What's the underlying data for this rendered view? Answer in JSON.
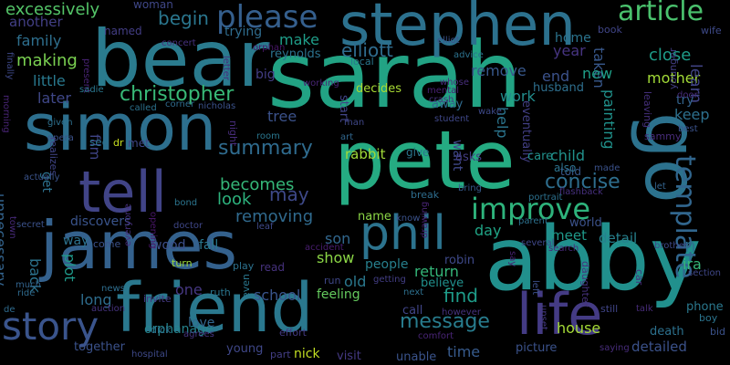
{
  "words": [
    {
      "t": "sarah",
      "c": "#22a384"
    },
    {
      "t": "bear",
      "c": "#2a7b8e"
    },
    {
      "t": "stephen",
      "c": "#2c718e"
    },
    {
      "t": "simon",
      "c": "#2d6f8e"
    },
    {
      "t": "tell",
      "c": "#414487"
    },
    {
      "t": "pete",
      "c": "#25ab82"
    },
    {
      "t": "james",
      "c": "#34618d"
    },
    {
      "t": "friend",
      "c": "#2a788e"
    },
    {
      "t": "abby",
      "c": "#21908d"
    },
    {
      "t": "go",
      "c": "#2c728e"
    },
    {
      "t": "phil",
      "c": "#2c738e"
    },
    {
      "t": "life",
      "c": "#443b84"
    },
    {
      "t": "story",
      "c": "#3a548c"
    },
    {
      "t": "please",
      "c": "#355f8d"
    },
    {
      "t": "article",
      "c": "#4ac16d"
    },
    {
      "t": "template",
      "c": "#31668e"
    },
    {
      "t": "improve",
      "c": "#2eb37c"
    },
    {
      "t": "summary",
      "c": "#2f6b8e"
    },
    {
      "t": "christopher",
      "c": "#38b977"
    },
    {
      "t": "message",
      "c": "#287c8e"
    },
    {
      "t": "concise",
      "c": "#2e6e8e"
    },
    {
      "t": "taken",
      "c": "#38588c"
    },
    {
      "t": "excessively",
      "c": "#54c568"
    },
    {
      "t": "family",
      "c": "#2e6f8e"
    },
    {
      "t": "making",
      "c": "#7ad151"
    },
    {
      "t": "another",
      "c": "#423f85"
    },
    {
      "t": "little",
      "c": "#29798e"
    },
    {
      "t": "later",
      "c": "#3f4788"
    },
    {
      "t": "begin",
      "c": "#2a768e"
    },
    {
      "t": "elliott",
      "c": "#2f6c8e"
    },
    {
      "t": "make",
      "c": "#1f9e89"
    },
    {
      "t": "reynolds",
      "c": "#2c728e"
    },
    {
      "t": "remove",
      "c": "#38588c"
    },
    {
      "t": "year",
      "c": "#463480"
    },
    {
      "t": "end",
      "c": "#3b528b"
    },
    {
      "t": "new",
      "c": "#1fa088"
    },
    {
      "t": "home",
      "c": "#2b748e"
    },
    {
      "t": "close",
      "c": "#1e9c89"
    },
    {
      "t": "mother",
      "c": "#a2da37"
    },
    {
      "t": "learn",
      "c": "#414487"
    },
    {
      "t": "painting",
      "c": "#20928c"
    },
    {
      "t": "keep",
      "c": "#2d708e"
    },
    {
      "t": "try",
      "c": "#33638d"
    },
    {
      "t": "becomes",
      "c": "#35b779"
    },
    {
      "t": "look",
      "c": "#2db27d"
    },
    {
      "t": "may",
      "c": "#3e4989"
    },
    {
      "t": "removing",
      "c": "#306a8e"
    },
    {
      "t": "tree",
      "c": "#3b528b"
    },
    {
      "t": "rabbit",
      "c": "#a0da39"
    },
    {
      "t": "want",
      "c": "#3f4889"
    },
    {
      "t": "work",
      "c": "#228d8d"
    },
    {
      "t": "help",
      "c": "#2b758e"
    },
    {
      "t": "child",
      "c": "#21918c"
    },
    {
      "t": "detail",
      "c": "#26818e"
    },
    {
      "t": "detailed",
      "c": "#3b528b"
    },
    {
      "t": "meet",
      "c": "#1f998a"
    },
    {
      "t": "day",
      "c": "#20a486"
    },
    {
      "t": "son",
      "c": "#31678e"
    },
    {
      "t": "show",
      "c": "#8bd646"
    },
    {
      "t": "return",
      "c": "#34b679"
    },
    {
      "t": "find",
      "c": "#1e9c89"
    },
    {
      "t": "school",
      "c": "#39558c"
    },
    {
      "t": "feeling",
      "c": "#65cb5e"
    },
    {
      "t": "one",
      "c": "#453781"
    },
    {
      "t": "long",
      "c": "#2e6d8e"
    },
    {
      "t": "unnecessary",
      "c": "#33638d"
    },
    {
      "t": "plot",
      "c": "#1f998a"
    },
    {
      "t": "back",
      "c": "#2c738e"
    },
    {
      "t": "get",
      "c": "#2d718e"
    },
    {
      "t": "wood",
      "c": "#3c4f8a"
    },
    {
      "t": "fall",
      "c": "#2a788e"
    },
    {
      "t": "discovers",
      "c": "#3a548c"
    },
    {
      "t": "name",
      "c": "#8bd646"
    },
    {
      "t": "people",
      "c": "#27808e"
    },
    {
      "t": "believe",
      "c": "#21908d"
    },
    {
      "t": "robin",
      "c": "#3e4989"
    },
    {
      "t": "call",
      "c": "#404588"
    },
    {
      "t": "old",
      "c": "#2a788e"
    },
    {
      "t": "time",
      "c": "#375b8d"
    },
    {
      "t": "house",
      "c": "#a5db36"
    },
    {
      "t": "picture",
      "c": "#3b528b"
    },
    {
      "t": "unable",
      "c": "#3a538b"
    },
    {
      "t": "visit",
      "c": "#443983"
    },
    {
      "t": "nick",
      "c": "#c2df23"
    },
    {
      "t": "young",
      "c": "#3f4788"
    },
    {
      "t": "orphanage",
      "c": "#25848e"
    },
    {
      "t": "together",
      "c": "#3b528b"
    },
    {
      "t": "love",
      "c": "#31678e"
    },
    {
      "t": "death",
      "c": "#2c718e"
    },
    {
      "t": "phone",
      "c": "#2a788e"
    },
    {
      "t": "ira",
      "c": "#35b779"
    },
    {
      "t": "n",
      "c": "#2c738e"
    },
    {
      "t": "decides",
      "c": "#a8db34"
    },
    {
      "t": "start",
      "c": "#414487"
    },
    {
      "t": "eventually",
      "c": "#423f85"
    },
    {
      "t": "husband",
      "c": "#2e6f8e"
    },
    {
      "t": "care",
      "c": "#21918c"
    },
    {
      "t": "told",
      "c": "#38598c"
    },
    {
      "t": "also",
      "c": "#2c728e"
    },
    {
      "t": "asks",
      "c": "#433d84"
    },
    {
      "t": "give",
      "c": "#2a768e"
    },
    {
      "t": "away",
      "c": "#2f6b8e"
    },
    {
      "t": "trying",
      "c": "#2f6c8e"
    },
    {
      "t": "woman",
      "c": "#3f4788"
    },
    {
      "t": "named",
      "c": "#433e85"
    },
    {
      "t": "film",
      "c": "#404588"
    },
    {
      "t": "big",
      "c": "#433e85"
    },
    {
      "t": "see",
      "c": "#2c718e"
    },
    {
      "t": "dr",
      "c": "#c8e020"
    },
    {
      "t": "met",
      "c": "#3f4788"
    },
    {
      "t": "turn",
      "c": "#9bd93c"
    },
    {
      "t": "ruth",
      "c": "#2a768e"
    },
    {
      "t": "invite",
      "c": "#443983"
    },
    {
      "t": "way",
      "c": "#2c728e"
    },
    {
      "t": "come",
      "c": "#3b528b"
    },
    {
      "t": "even",
      "c": "#2a778e"
    },
    {
      "t": "effort",
      "c": "#443a83"
    },
    {
      "t": "part",
      "c": "#433e85"
    },
    {
      "t": "comfort",
      "c": "#482475"
    },
    {
      "t": "however",
      "c": "#46327e"
    },
    {
      "t": "next",
      "c": "#2d708e"
    },
    {
      "t": "getting",
      "c": "#433e85"
    },
    {
      "t": "run",
      "c": "#3f4788"
    },
    {
      "t": "read",
      "c": "#46327e"
    },
    {
      "t": "play",
      "c": "#2c718e"
    },
    {
      "t": "still",
      "c": "#404588"
    },
    {
      "t": "talk",
      "c": "#472c7a"
    },
    {
      "t": "bid",
      "c": "#3b528b"
    },
    {
      "t": "boy",
      "c": "#2b748e"
    },
    {
      "t": "saying",
      "c": "#472c7a"
    },
    {
      "t": "section",
      "c": "#3f4788"
    },
    {
      "t": "brother",
      "c": "#3e4989"
    },
    {
      "t": "hospital",
      "c": "#3e4989"
    },
    {
      "t": "agrees",
      "c": "#453581"
    },
    {
      "t": "dick",
      "c": "#2c718e"
    },
    {
      "t": "auction",
      "c": "#46337f"
    },
    {
      "t": "de",
      "c": "#2f6b8e"
    },
    {
      "t": "news",
      "c": "#2e6d8e"
    },
    {
      "t": "ride",
      "c": "#2f6b8e"
    },
    {
      "t": "much",
      "c": "#32648e"
    },
    {
      "t": "left",
      "c": "#3c508b"
    },
    {
      "t": "daughter",
      "c": "#46327e"
    },
    {
      "t": "upset",
      "c": "#443983"
    },
    {
      "t": "car",
      "c": "#46307e"
    },
    {
      "t": "search",
      "c": "#472a7a"
    },
    {
      "t": "world",
      "c": "#3b528b"
    },
    {
      "t": "parent",
      "c": "#2d718e"
    },
    {
      "t": "several",
      "c": "#3f4788"
    },
    {
      "t": "say",
      "c": "#482374"
    },
    {
      "t": "know",
      "c": "#3b528b"
    },
    {
      "t": "break",
      "c": "#2e6d8e"
    },
    {
      "t": "drawing",
      "c": "#482475"
    },
    {
      "t": "bring",
      "c": "#375b8d"
    },
    {
      "t": "portrait",
      "c": "#2c718e"
    },
    {
      "t": "flashback",
      "c": "#46307e"
    },
    {
      "t": "made",
      "c": "#3b528b"
    },
    {
      "t": "let",
      "c": "#33638d"
    },
    {
      "t": "best",
      "c": "#3b528b"
    },
    {
      "t": "door",
      "c": "#472c7a"
    },
    {
      "t": "sammy",
      "c": "#472c7a"
    },
    {
      "t": "younger",
      "c": "#433e85"
    },
    {
      "t": "leaving",
      "c": "#46307e"
    },
    {
      "t": "wake",
      "c": "#3e4989"
    },
    {
      "t": "student",
      "c": "#3f4788"
    },
    {
      "t": "crash",
      "c": "#46327e"
    },
    {
      "t": "mental",
      "c": "#482173"
    },
    {
      "t": "whose",
      "c": "#472d7b"
    },
    {
      "t": "advice",
      "c": "#2c728e"
    },
    {
      "t": "elliot",
      "c": "#3b528b"
    },
    {
      "t": "book",
      "c": "#404588"
    },
    {
      "t": "wife",
      "c": "#3e4a89"
    },
    {
      "t": "local",
      "c": "#2a778e"
    },
    {
      "t": "letter",
      "c": "#46307e"
    },
    {
      "t": "present",
      "c": "#482374"
    },
    {
      "t": "finally",
      "c": "#3e4989"
    },
    {
      "t": "sadie",
      "c": "#2a788e"
    },
    {
      "t": "concert",
      "c": "#46327e"
    },
    {
      "t": "orphan",
      "c": "#481668"
    },
    {
      "t": "working",
      "c": "#482576"
    },
    {
      "t": "man",
      "c": "#3f4788"
    },
    {
      "t": "art",
      "c": "#31678e"
    },
    {
      "t": "room",
      "c": "#2a768e"
    },
    {
      "t": "night",
      "c": "#472c7a"
    },
    {
      "t": "nicholas",
      "c": "#3b528b"
    },
    {
      "t": "corner",
      "c": "#2f6b8e"
    },
    {
      "t": "called",
      "c": "#2c728e"
    },
    {
      "t": "morning",
      "c": "#482475"
    },
    {
      "t": "given",
      "c": "#2d708e"
    },
    {
      "t": "opera",
      "c": "#3b528b"
    },
    {
      "t": "realizes",
      "c": "#404588"
    },
    {
      "t": "actually",
      "c": "#3a538b"
    },
    {
      "t": "secret",
      "c": "#3b528b"
    },
    {
      "t": "town",
      "c": "#472a7a"
    },
    {
      "t": "bond",
      "c": "#2b748e"
    },
    {
      "t": "doctor",
      "c": "#3f4788"
    },
    {
      "t": "opening",
      "c": "#481668"
    },
    {
      "t": "everyone",
      "c": "#46307e"
    },
    {
      "t": "accident",
      "c": "#481d6f"
    },
    {
      "t": "leaf",
      "c": "#3e4989"
    }
  ]
}
